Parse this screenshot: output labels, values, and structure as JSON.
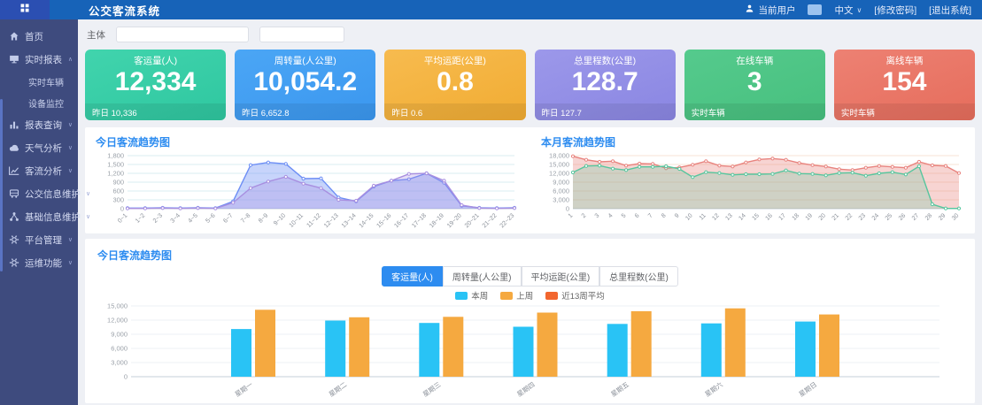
{
  "theme": {
    "header_bg": "#1763b8",
    "logo_tile_bg": "#2b4fb2",
    "sidebar_bg": "#3e4b7e",
    "accent_blue": "#2d8cf0",
    "main_bg": "#eef0f5"
  },
  "header": {
    "title": "公交客流系统",
    "user_label": "当前用户",
    "language": "中文",
    "change_password": "[修改密码]",
    "logout": "[退出系统]"
  },
  "sidebar": {
    "items": [
      {
        "key": "home",
        "label": "首页",
        "icon": "home-icon",
        "caret": ""
      },
      {
        "key": "realtime-report",
        "label": "实时报表",
        "icon": "monitor-icon",
        "caret": "up",
        "children": [
          {
            "key": "realtime-vehicle",
            "label": "实时车辆"
          },
          {
            "key": "device-monitor",
            "label": "设备监控"
          }
        ]
      },
      {
        "key": "report-query",
        "label": "报表查询",
        "icon": "bar-chart-icon",
        "caret": "down"
      },
      {
        "key": "weather-analysis",
        "label": "天气分析",
        "icon": "cloud-icon",
        "caret": "down"
      },
      {
        "key": "flow-analysis",
        "label": "客流分析",
        "icon": "line-chart-icon",
        "caret": "down"
      },
      {
        "key": "bus-info-maintenance",
        "label": "公交信息维护",
        "icon": "bus-icon",
        "caret": "down"
      },
      {
        "key": "base-info-maintenance",
        "label": "基础信息维护",
        "icon": "nodes-icon",
        "caret": "down"
      },
      {
        "key": "platform-mgmt",
        "label": "平台管理",
        "icon": "gear-icon",
        "caret": "down"
      },
      {
        "key": "ops-functions",
        "label": "运维功能",
        "icon": "gear-icon",
        "caret": "down"
      }
    ]
  },
  "filters": {
    "subject_label": "主体",
    "input1_value": "",
    "input2_value": ""
  },
  "stat_cards": [
    {
      "key": "passenger-volume",
      "title": "客运量(人)",
      "value": "12,334",
      "footer": "昨日 10,336",
      "color_from": "#41d4ad",
      "color_to": "#2fc7a0"
    },
    {
      "key": "turnover",
      "title": "周转量(人公里)",
      "value": "10,054.2",
      "footer": "昨日 6,652.8",
      "color_from": "#4ba6f5",
      "color_to": "#3b97ef"
    },
    {
      "key": "avg-distance",
      "title": "平均运距(公里)",
      "value": "0.8",
      "footer": "昨日 0.6",
      "color_from": "#f7bb4f",
      "color_to": "#f1ac33"
    },
    {
      "key": "total-mileage",
      "title": "总里程数(公里)",
      "value": "128.7",
      "footer": "昨日 127.7",
      "color_from": "#9c98ea",
      "color_to": "#8a86e2"
    },
    {
      "key": "online-vehicles",
      "title": "在线车辆",
      "value": "3",
      "footer": "实时车辆",
      "color_from": "#55ca8d",
      "color_to": "#47c07e"
    },
    {
      "key": "offline-vehicles",
      "title": "离线车辆",
      "value": "154",
      "footer": "实时车辆",
      "color_from": "#ed8173",
      "color_to": "#e66d5c"
    }
  ],
  "bottom": {
    "tabs": [
      {
        "key": "passenger-volume",
        "label": "客运量(人)",
        "active": true
      },
      {
        "key": "turnover",
        "label": "周转量(人公里)",
        "active": false
      },
      {
        "key": "avg-distance",
        "label": "平均运距(公里)",
        "active": false
      },
      {
        "key": "total-mileage",
        "label": "总里程数(公里)",
        "active": false
      }
    ]
  },
  "chart_data": [
    {
      "type": "line",
      "title": "今日客流趋势图",
      "x": [
        "0~1",
        "1~2",
        "2~3",
        "3~4",
        "4~5",
        "5~6",
        "6~7",
        "7~8",
        "8~9",
        "9~10",
        "10~11",
        "11~12",
        "12~13",
        "13~14",
        "14~15",
        "15~16",
        "16~17",
        "17~18",
        "18~19",
        "19~20",
        "20~21",
        "21~22",
        "22~23"
      ],
      "series": [
        {
          "name": "series-blue",
          "color": "#6c8df5",
          "fill_opacity": 0.38,
          "values": [
            20,
            20,
            30,
            20,
            30,
            20,
            250,
            1480,
            1570,
            1520,
            1020,
            1030,
            380,
            250,
            750,
            950,
            1000,
            1200,
            880,
            100,
            30,
            20,
            30
          ]
        },
        {
          "name": "series-purple",
          "color": "#a88fe0",
          "fill_opacity": 0.3,
          "values": [
            10,
            10,
            20,
            10,
            20,
            10,
            200,
            700,
            920,
            1080,
            850,
            700,
            300,
            270,
            780,
            950,
            1180,
            1200,
            950,
            120,
            20,
            10,
            20
          ]
        }
      ],
      "ylim": [
        0,
        1800
      ],
      "yticks": [
        0,
        300,
        600,
        900,
        1200,
        1500,
        1800
      ],
      "grid_color": "#d8eef2",
      "legend_position": "none"
    },
    {
      "type": "area",
      "title": "本月客流趋势图",
      "x": [
        "1",
        "2",
        "3",
        "4",
        "5",
        "6",
        "7",
        "8",
        "9",
        "10",
        "11",
        "12",
        "13",
        "14",
        "15",
        "16",
        "17",
        "18",
        "19",
        "20",
        "21",
        "22",
        "23",
        "24",
        "25",
        "26",
        "27",
        "28",
        "29",
        "30"
      ],
      "series": [
        {
          "name": "series-red",
          "color": "#e8837e",
          "fill_opacity": 0.35,
          "values": [
            17800,
            16600,
            15900,
            16100,
            14600,
            15300,
            15200,
            13700,
            14000,
            14900,
            16100,
            14600,
            14300,
            15700,
            16700,
            17000,
            16600,
            15500,
            14800,
            14300,
            13400,
            13100,
            13900,
            14500,
            14200,
            13900,
            15900,
            14700,
            14500,
            12100
          ]
        },
        {
          "name": "series-green",
          "color": "#56c69e",
          "fill_opacity": 0.25,
          "values": [
            12300,
            14500,
            14600,
            13600,
            13100,
            14200,
            14200,
            14400,
            13500,
            10700,
            12400,
            12100,
            11500,
            11700,
            11700,
            11800,
            13000,
            11900,
            11800,
            11300,
            12100,
            12200,
            11200,
            12000,
            12400,
            11600,
            14400,
            1500,
            100,
            100
          ]
        }
      ],
      "ylim": [
        0,
        18000
      ],
      "yticks": [
        0,
        3000,
        6000,
        9000,
        12000,
        15000,
        18000
      ],
      "grid_color": "#f7e3d6",
      "legend_position": "none"
    },
    {
      "type": "bar",
      "title": "今日客流趋势图",
      "categories": [
        "星期一",
        "星期二",
        "星期三",
        "星期四",
        "星期五",
        "星期六",
        "星期日"
      ],
      "series": [
        {
          "name": "本周",
          "color": "#29c3f5",
          "values": [
            10100,
            11900,
            11400,
            10600,
            11200,
            11300,
            11700
          ]
        },
        {
          "name": "上周",
          "color": "#f5a940",
          "values": [
            14200,
            12600,
            12700,
            13600,
            13900,
            14500,
            13200
          ]
        },
        {
          "name": "近13周平均",
          "color": "#f2662e",
          "values": []
        }
      ],
      "ylim": [
        0,
        15000
      ],
      "yticks": [
        0,
        3000,
        6000,
        9000,
        12000,
        15000
      ],
      "grid_color": "#edf0f4",
      "legend_position": "top"
    }
  ]
}
